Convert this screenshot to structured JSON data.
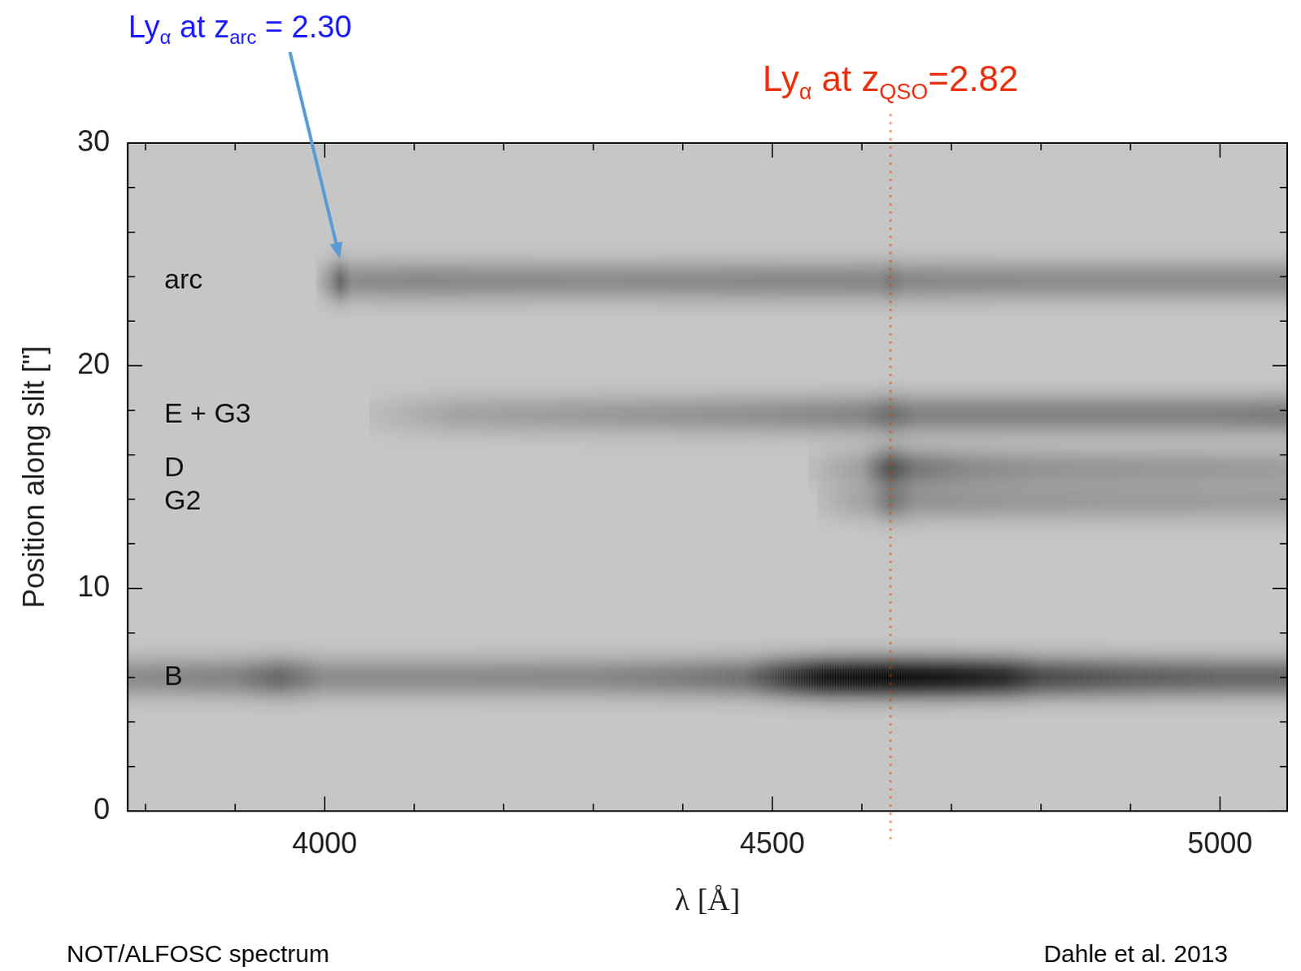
{
  "chart_data": {
    "type": "spectrum2d",
    "x_label": "λ [Å]",
    "y_label": "Position along slit [\"]",
    "xlim": [
      3780,
      5075
    ],
    "xticks": [
      4000,
      4500,
      5000
    ],
    "ylim": [
      0,
      30
    ],
    "yticks": [
      0,
      10,
      20,
      30
    ],
    "grid": false,
    "series": [
      {
        "name": "arc",
        "position": 23.8,
        "x": [
          3990,
          4005,
          4017,
          4030,
          4100,
          4300,
          4500,
          4620,
          4632,
          4650,
          4800,
          5000,
          5075
        ],
        "values": [
          0.05,
          0.25,
          0.5,
          0.3,
          0.32,
          0.3,
          0.32,
          0.33,
          0.4,
          0.32,
          0.3,
          0.3,
          0.3
        ]
      },
      {
        "name": "E + G3",
        "position": 17.8,
        "x": [
          4050,
          4150,
          4300,
          4500,
          4600,
          4632,
          4660,
          4800,
          5000,
          5075
        ],
        "values": [
          0.05,
          0.18,
          0.22,
          0.28,
          0.33,
          0.45,
          0.35,
          0.35,
          0.35,
          0.38
        ]
      },
      {
        "name": "D",
        "position": 15.4,
        "x": [
          4540,
          4600,
          4632,
          4660,
          4720,
          4800,
          5000,
          5075
        ],
        "values": [
          0.05,
          0.2,
          0.6,
          0.4,
          0.3,
          0.25,
          0.22,
          0.2
        ]
      },
      {
        "name": "G2",
        "position": 13.9,
        "x": [
          4550,
          4610,
          4632,
          4660,
          4800,
          5000,
          5075
        ],
        "values": [
          0.05,
          0.2,
          0.4,
          0.25,
          0.22,
          0.2,
          0.2
        ]
      },
      {
        "name": "B",
        "position": 6.0,
        "x": [
          3780,
          3900,
          3950,
          4000,
          4100,
          4300,
          4400,
          4470,
          4520,
          4560,
          4632,
          4700,
          4760,
          4800,
          4900,
          5000,
          5075
        ],
        "values": [
          0.3,
          0.35,
          0.5,
          0.3,
          0.3,
          0.32,
          0.38,
          0.45,
          0.75,
          0.95,
          1,
          0.95,
          0.85,
          0.65,
          0.55,
          0.5,
          0.5
        ]
      }
    ],
    "annotations": [
      {
        "parts": [
          {
            "text": "Ly"
          },
          {
            "text": "α",
            "sub": true
          },
          {
            "text": " at z"
          },
          {
            "text": "arc",
            "sub": true
          },
          {
            "text": " = 2.30"
          }
        ],
        "color": "#1a1aff",
        "x": 4017,
        "y": 24.8,
        "marker": "arrow"
      },
      {
        "parts": [
          {
            "text": "Ly"
          },
          {
            "text": "α",
            "sub": true
          },
          {
            "text": " at z"
          },
          {
            "text": "QSO",
            "sub": true
          },
          {
            "text": "=2.82"
          }
        ],
        "color": "#e8300e",
        "x": 4632,
        "line_style": "dotted"
      }
    ],
    "footer_left": "NOT/ALFOSC spectrum",
    "footer_right": "Dahle et al. 2013"
  }
}
